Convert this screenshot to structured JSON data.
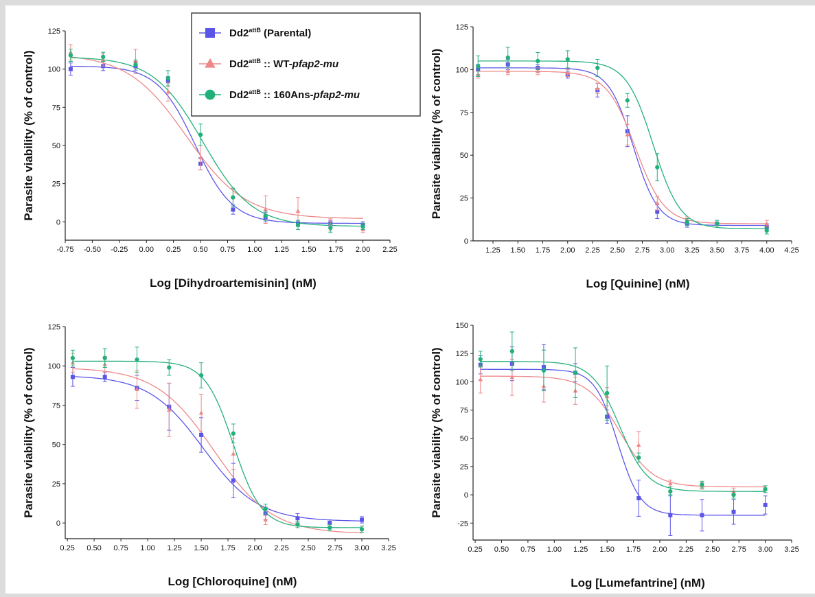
{
  "series_colors": {
    "parental": "#5a55e8",
    "wt": "#ee8888",
    "ans160": "#22b07a"
  },
  "legend": {
    "items": [
      {
        "key": "parental",
        "marker": "square-marker",
        "base": "Dd2",
        "sup": "attB",
        "rest": " (Parental)",
        "italic": ""
      },
      {
        "key": "wt",
        "marker": "triangle-marker",
        "base": "Dd2",
        "sup": "attB",
        "rest": " :: WT-",
        "italic": "pfap2-mu"
      },
      {
        "key": "ans160",
        "marker": "circle-marker",
        "base": "Dd2",
        "sup": "attB",
        "rest": " :: 160Ans-",
        "italic": "pfap2-mu"
      }
    ]
  },
  "chart_data": [
    {
      "type": "scatter",
      "fit": "dose-response",
      "xlabel": "Log [Dihydroartemisinin] (nM)",
      "ylabel": "Parasite viability (% of control)",
      "xlim": [
        -0.75,
        2.25
      ],
      "ylim": [
        -12,
        125
      ],
      "xticks": [
        "-0.75",
        "-0.50",
        "-0.25",
        "0.00",
        "0.25",
        "0.50",
        "0.75",
        "1.00",
        "1.25",
        "1.50",
        "1.75",
        "2.00",
        "2.25"
      ],
      "yticks": [
        "0",
        "25",
        "50",
        "75",
        "100",
        "125"
      ],
      "x": [
        -0.7,
        -0.4,
        -0.1,
        0.2,
        0.5,
        0.8,
        1.1,
        1.4,
        1.7,
        2.0
      ],
      "series": [
        {
          "key": "parental",
          "name": "Dd2attB (Parental)",
          "values": [
            100,
            102,
            102,
            92,
            38,
            8,
            3,
            -1,
            -1,
            -2
          ],
          "errors": [
            4,
            3,
            3,
            3,
            4,
            3,
            3,
            2,
            2,
            2
          ],
          "fit": {
            "top": 102,
            "bottom": -1,
            "logec50": 0.45,
            "hill": 2.5
          }
        },
        {
          "key": "wt",
          "name": "Dd2attB :: WT-pfap2-mu",
          "values": [
            111,
            106,
            105,
            85,
            42,
            16,
            8,
            7,
            -2,
            -5
          ],
          "errors": [
            5,
            4,
            8,
            6,
            8,
            6,
            9,
            9,
            4,
            2
          ],
          "fit": {
            "top": 110,
            "bottom": 2,
            "logec50": 0.37,
            "hill": 1.6
          }
        },
        {
          "key": "ans160",
          "name": "Dd2attB :: 160Ans-pfap2-mu",
          "values": [
            109,
            108,
            103,
            94,
            57,
            16,
            4,
            -2,
            -4,
            -3
          ],
          "errors": [
            4,
            3,
            3,
            5,
            7,
            6,
            3,
            3,
            3,
            2
          ],
          "fit": {
            "top": 108,
            "bottom": -3,
            "logec50": 0.52,
            "hill": 1.9
          }
        }
      ]
    },
    {
      "type": "scatter",
      "fit": "dose-response",
      "xlabel": "Log [Quinine] (nM)",
      "ylabel": "Parasite viability (% of control)",
      "xlim": [
        1.05,
        4.25
      ],
      "ylim": [
        0,
        125
      ],
      "xticks": [
        "1.25",
        "1.50",
        "1.75",
        "2.00",
        "2.25",
        "2.50",
        "2.75",
        "3.00",
        "3.25",
        "3.50",
        "3.75",
        "4.00",
        "4.25"
      ],
      "yticks": [
        "0",
        "25",
        "50",
        "75",
        "100",
        "125"
      ],
      "x": [
        1.1,
        1.4,
        1.7,
        2.0,
        2.3,
        2.6,
        2.9,
        3.2,
        3.5,
        4.0
      ],
      "series": [
        {
          "key": "parental",
          "name": "Dd2attB (Parental)",
          "values": [
            100,
            103,
            101,
            97,
            88,
            64,
            17,
            10,
            10,
            8
          ],
          "errors": [
            3,
            3,
            2,
            2,
            4,
            9,
            4,
            2,
            2,
            2
          ],
          "fit": {
            "top": 101,
            "bottom": 9,
            "logec50": 2.66,
            "hill": 3.5
          }
        },
        {
          "key": "wt",
          "name": "Dd2attB :: WT-pfap2-mu",
          "values": [
            97,
            99,
            99,
            98,
            89,
            62,
            22,
            12,
            10,
            10
          ],
          "errors": [
            2,
            2,
            2,
            2,
            3,
            6,
            4,
            2,
            2,
            2
          ],
          "fit": {
            "top": 99,
            "bottom": 10,
            "logec50": 2.68,
            "hill": 3.0
          }
        },
        {
          "key": "ans160",
          "name": "Dd2attB :: 160Ans-pfap2-mu",
          "values": [
            102,
            107,
            105,
            106,
            101,
            82,
            43,
            11,
            10,
            6
          ],
          "errors": [
            6,
            6,
            5,
            5,
            5,
            4,
            8,
            2,
            2,
            2
          ],
          "fit": {
            "top": 105,
            "bottom": 7,
            "logec50": 2.86,
            "hill": 3.2
          }
        }
      ]
    },
    {
      "type": "scatter",
      "fit": "dose-response",
      "xlabel": "Log [Chloroquine] (nM)",
      "ylabel": "Parasite viability (% of control)",
      "xlim": [
        0.23,
        3.25
      ],
      "ylim": [
        -10,
        125
      ],
      "xticks": [
        "0.25",
        "0.50",
        "0.75",
        "1.00",
        "1.25",
        "1.50",
        "1.75",
        "2.00",
        "2.25",
        "2.50",
        "2.75",
        "3.00",
        "3.25"
      ],
      "yticks": [
        "0",
        "25",
        "50",
        "75",
        "100",
        "125"
      ],
      "x": [
        0.3,
        0.6,
        0.9,
        1.2,
        1.5,
        1.8,
        2.1,
        2.4,
        2.7,
        3.0
      ],
      "series": [
        {
          "key": "parental",
          "name": "Dd2attB (Parental)",
          "values": [
            93,
            93,
            86,
            74,
            56,
            27,
            6,
            3,
            0,
            2
          ],
          "errors": [
            6,
            3,
            8,
            15,
            11,
            11,
            4,
            3,
            2,
            2
          ],
          "fit": {
            "top": 94,
            "bottom": 1,
            "logec50": 1.52,
            "hill": 1.7
          }
        },
        {
          "key": "wt",
          "name": "Dd2attB :: WT-pfap2-mu",
          "values": [
            102,
            101,
            85,
            72,
            70,
            44,
            2,
            -1,
            -3,
            -4
          ],
          "errors": [
            6,
            5,
            12,
            17,
            12,
            10,
            3,
            2,
            2,
            2
          ],
          "fit": {
            "top": 99,
            "bottom": -7,
            "logec50": 1.62,
            "hill": 1.6
          }
        },
        {
          "key": "ans160",
          "name": "Dd2attB :: 160Ans-pfap2-mu",
          "values": [
            105,
            105,
            104,
            99,
            94,
            57,
            9,
            -1,
            -3,
            -4
          ],
          "errors": [
            5,
            6,
            8,
            5,
            8,
            6,
            3,
            2,
            2,
            2
          ],
          "fit": {
            "top": 103,
            "bottom": -3,
            "logec50": 1.8,
            "hill": 3.3
          }
        }
      ]
    },
    {
      "type": "scatter",
      "fit": "dose-response",
      "xlabel": "Log [Lumefantrine] (nM)",
      "ylabel": "Parasite viability (% of control)",
      "xlim": [
        0.23,
        3.25
      ],
      "ylim": [
        -40,
        150
      ],
      "xticks": [
        "0.25",
        "0.50",
        "0.75",
        "1.00",
        "1.25",
        "1.50",
        "1.75",
        "2.00",
        "2.25",
        "2.50",
        "2.75",
        "3.00",
        "3.25"
      ],
      "yticks": [
        "-25",
        "0",
        "25",
        "50",
        "75",
        "100",
        "125",
        "150"
      ],
      "x": [
        0.3,
        0.6,
        0.9,
        1.2,
        1.5,
        1.8,
        2.1,
        2.4,
        2.7,
        3.0
      ],
      "series": [
        {
          "key": "parental",
          "name": "Dd2attB (Parental)",
          "values": [
            115,
            116,
            113,
            108,
            69,
            -3,
            -18,
            -18,
            -15,
            -9
          ],
          "errors": [
            8,
            15,
            20,
            8,
            6,
            16,
            18,
            14,
            11,
            8
          ],
          "fit": {
            "top": 111,
            "bottom": -18,
            "logec50": 1.6,
            "hill": 4.0
          }
        },
        {
          "key": "wt",
          "name": "Dd2attB :: WT-pfap2-mu",
          "values": [
            102,
            104,
            96,
            92,
            87,
            44,
            10,
            8,
            3,
            5
          ],
          "errors": [
            12,
            16,
            14,
            12,
            8,
            12,
            3,
            3,
            3,
            3
          ],
          "fit": {
            "top": 105,
            "bottom": 7,
            "logec50": 1.62,
            "hill": 2.8
          }
        },
        {
          "key": "ans160",
          "name": "Dd2attB :: 160Ans-pfap2-mu",
          "values": [
            120,
            127,
            110,
            108,
            90,
            33,
            3,
            9,
            0,
            5
          ],
          "errors": [
            7,
            17,
            18,
            22,
            24,
            4,
            4,
            3,
            3,
            3
          ],
          "fit": {
            "top": 118,
            "bottom": 3,
            "logec50": 1.62,
            "hill": 3.3
          }
        }
      ]
    }
  ]
}
